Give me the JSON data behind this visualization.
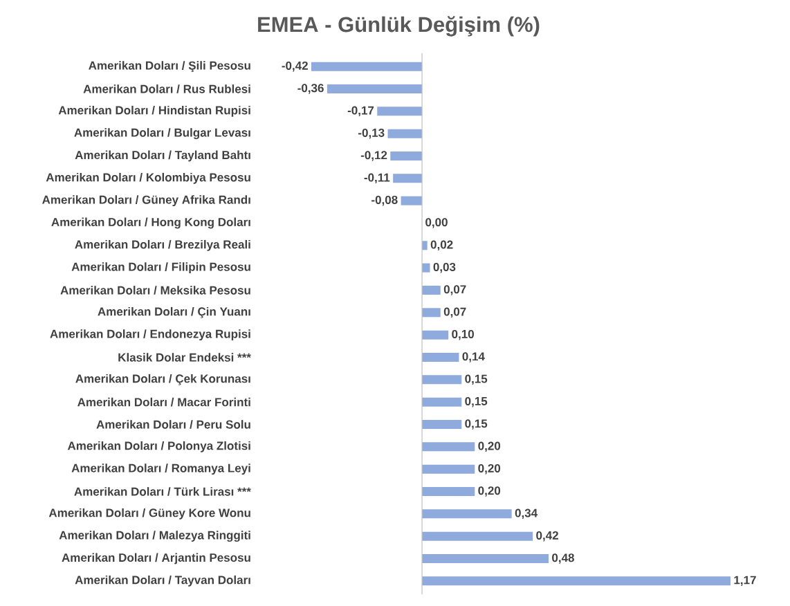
{
  "chart_data": {
    "type": "bar",
    "orientation": "horizontal",
    "title": "EMEA - Günlük Değişim (%)",
    "categories": [
      "Amerikan Doları / Şili Pesosu",
      "Amerikan Doları / Rus Rublesi",
      "Amerikan Doları / Hindistan Rupisi",
      "Amerikan Doları / Bulgar Levası",
      "Amerikan Doları / Tayland Bahtı",
      "Amerikan Doları / Kolombiya Pesosu",
      "Amerikan Doları / Güney Afrika Randı",
      "Amerikan Doları / Hong Kong Doları",
      "Amerikan Doları / Brezilya Reali",
      "Amerikan Doları / Filipin Pesosu",
      "Amerikan Doları / Meksika Pesosu",
      "Amerikan Doları / Çin Yuanı",
      "Amerikan Doları / Endonezya Rupisi",
      "Klasik Dolar Endeksi ***",
      "Amerikan Doları / Çek Korunası",
      "Amerikan Doları / Macar Forinti",
      "Amerikan Doları / Peru Solu",
      "Amerikan Doları / Polonya Zlotisi",
      "Amerikan Doları / Romanya Leyi",
      "Amerikan Doları / Türk Lirası ***",
      "Amerikan Doları / Güney Kore Wonu",
      "Amerikan Doları / Malezya Ringgiti",
      "Amerikan Doları / Arjantin Pesosu",
      "Amerikan Doları / Tayvan Doları"
    ],
    "values": [
      -0.42,
      -0.36,
      -0.17,
      -0.13,
      -0.12,
      -0.11,
      -0.08,
      0.0,
      0.02,
      0.03,
      0.07,
      0.07,
      0.1,
      0.14,
      0.15,
      0.15,
      0.15,
      0.2,
      0.2,
      0.2,
      0.34,
      0.42,
      0.48,
      1.17
    ],
    "value_labels": [
      "-0,42",
      "-0,36",
      "-0,17",
      "-0,13",
      "-0,12",
      "-0,11",
      "-0,08",
      "0,00",
      "0,02",
      "0,03",
      "0,07",
      "0,07",
      "0,10",
      "0,14",
      "0,15",
      "0,15",
      "0,15",
      "0,20",
      "0,20",
      "0,20",
      "0,34",
      "0,42",
      "0,48",
      "1,17"
    ],
    "color": "#8faadc",
    "tick_labels": "y"
  }
}
